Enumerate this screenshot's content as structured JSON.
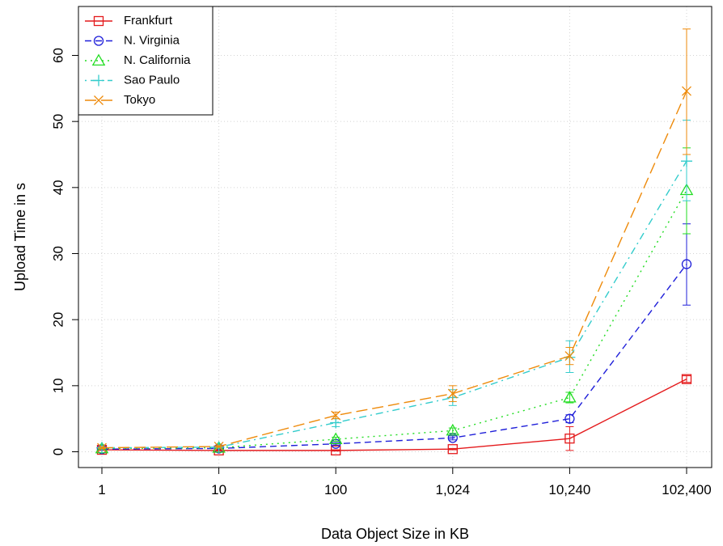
{
  "chart_data": {
    "type": "line",
    "xlabel": "Data Object Size in KB",
    "ylabel": "Upload Time in s",
    "categories": [
      "1",
      "10",
      "100",
      "1,024",
      "10,240",
      "102,400"
    ],
    "y_ticks": [
      "0",
      "10",
      "20",
      "30",
      "40",
      "50",
      "60"
    ],
    "ylim": [
      -2.5,
      66
    ],
    "grid": true,
    "legend_position": "top-left",
    "series": [
      {
        "name": "Frankfurt",
        "color": "#e41a1c",
        "marker": "square",
        "dash": "solid",
        "values": [
          0.3,
          0.2,
          0.2,
          0.4,
          2.0,
          11.0
        ],
        "err_low": [
          0.2,
          0.1,
          0.1,
          0.3,
          0.2,
          10.5
        ],
        "err_high": [
          0.4,
          0.3,
          0.3,
          0.5,
          3.8,
          11.5
        ]
      },
      {
        "name": "N. Virginia",
        "color": "#1f1fd9",
        "marker": "circle",
        "dash": "dashed",
        "values": [
          0.4,
          0.5,
          1.2,
          2.1,
          5.0,
          28.4
        ],
        "err_low": [
          0.3,
          0.4,
          1.0,
          1.8,
          4.4,
          22.2
        ],
        "err_high": [
          0.5,
          0.6,
          1.4,
          2.4,
          5.6,
          34.5
        ]
      },
      {
        "name": "N. California",
        "color": "#22dd22",
        "marker": "triangle",
        "dash": "dotted",
        "values": [
          0.5,
          0.6,
          1.9,
          3.2,
          8.2,
          39.6
        ],
        "err_low": [
          0.4,
          0.5,
          1.6,
          2.8,
          7.4,
          33.0
        ],
        "err_high": [
          0.6,
          0.7,
          2.2,
          3.6,
          9.0,
          46.0
        ]
      },
      {
        "name": "Sao Paulo",
        "color": "#33cccc",
        "marker": "plus",
        "dash": "dashdot",
        "values": [
          0.6,
          0.7,
          4.4,
          8.2,
          14.3,
          44.0
        ],
        "err_low": [
          0.5,
          0.6,
          3.8,
          7.0,
          12.0,
          38.0
        ],
        "err_high": [
          0.7,
          0.8,
          5.0,
          9.4,
          16.8,
          50.2
        ]
      },
      {
        "name": "Tokyo",
        "color": "#ee8a0a",
        "marker": "x",
        "dash": "longdash",
        "values": [
          0.6,
          0.8,
          5.5,
          8.8,
          14.5,
          54.6
        ],
        "err_low": [
          0.5,
          0.7,
          5.0,
          7.6,
          13.2,
          45.0
        ],
        "err_high": [
          0.7,
          0.9,
          6.0,
          10.0,
          15.8,
          64.0
        ]
      }
    ]
  }
}
